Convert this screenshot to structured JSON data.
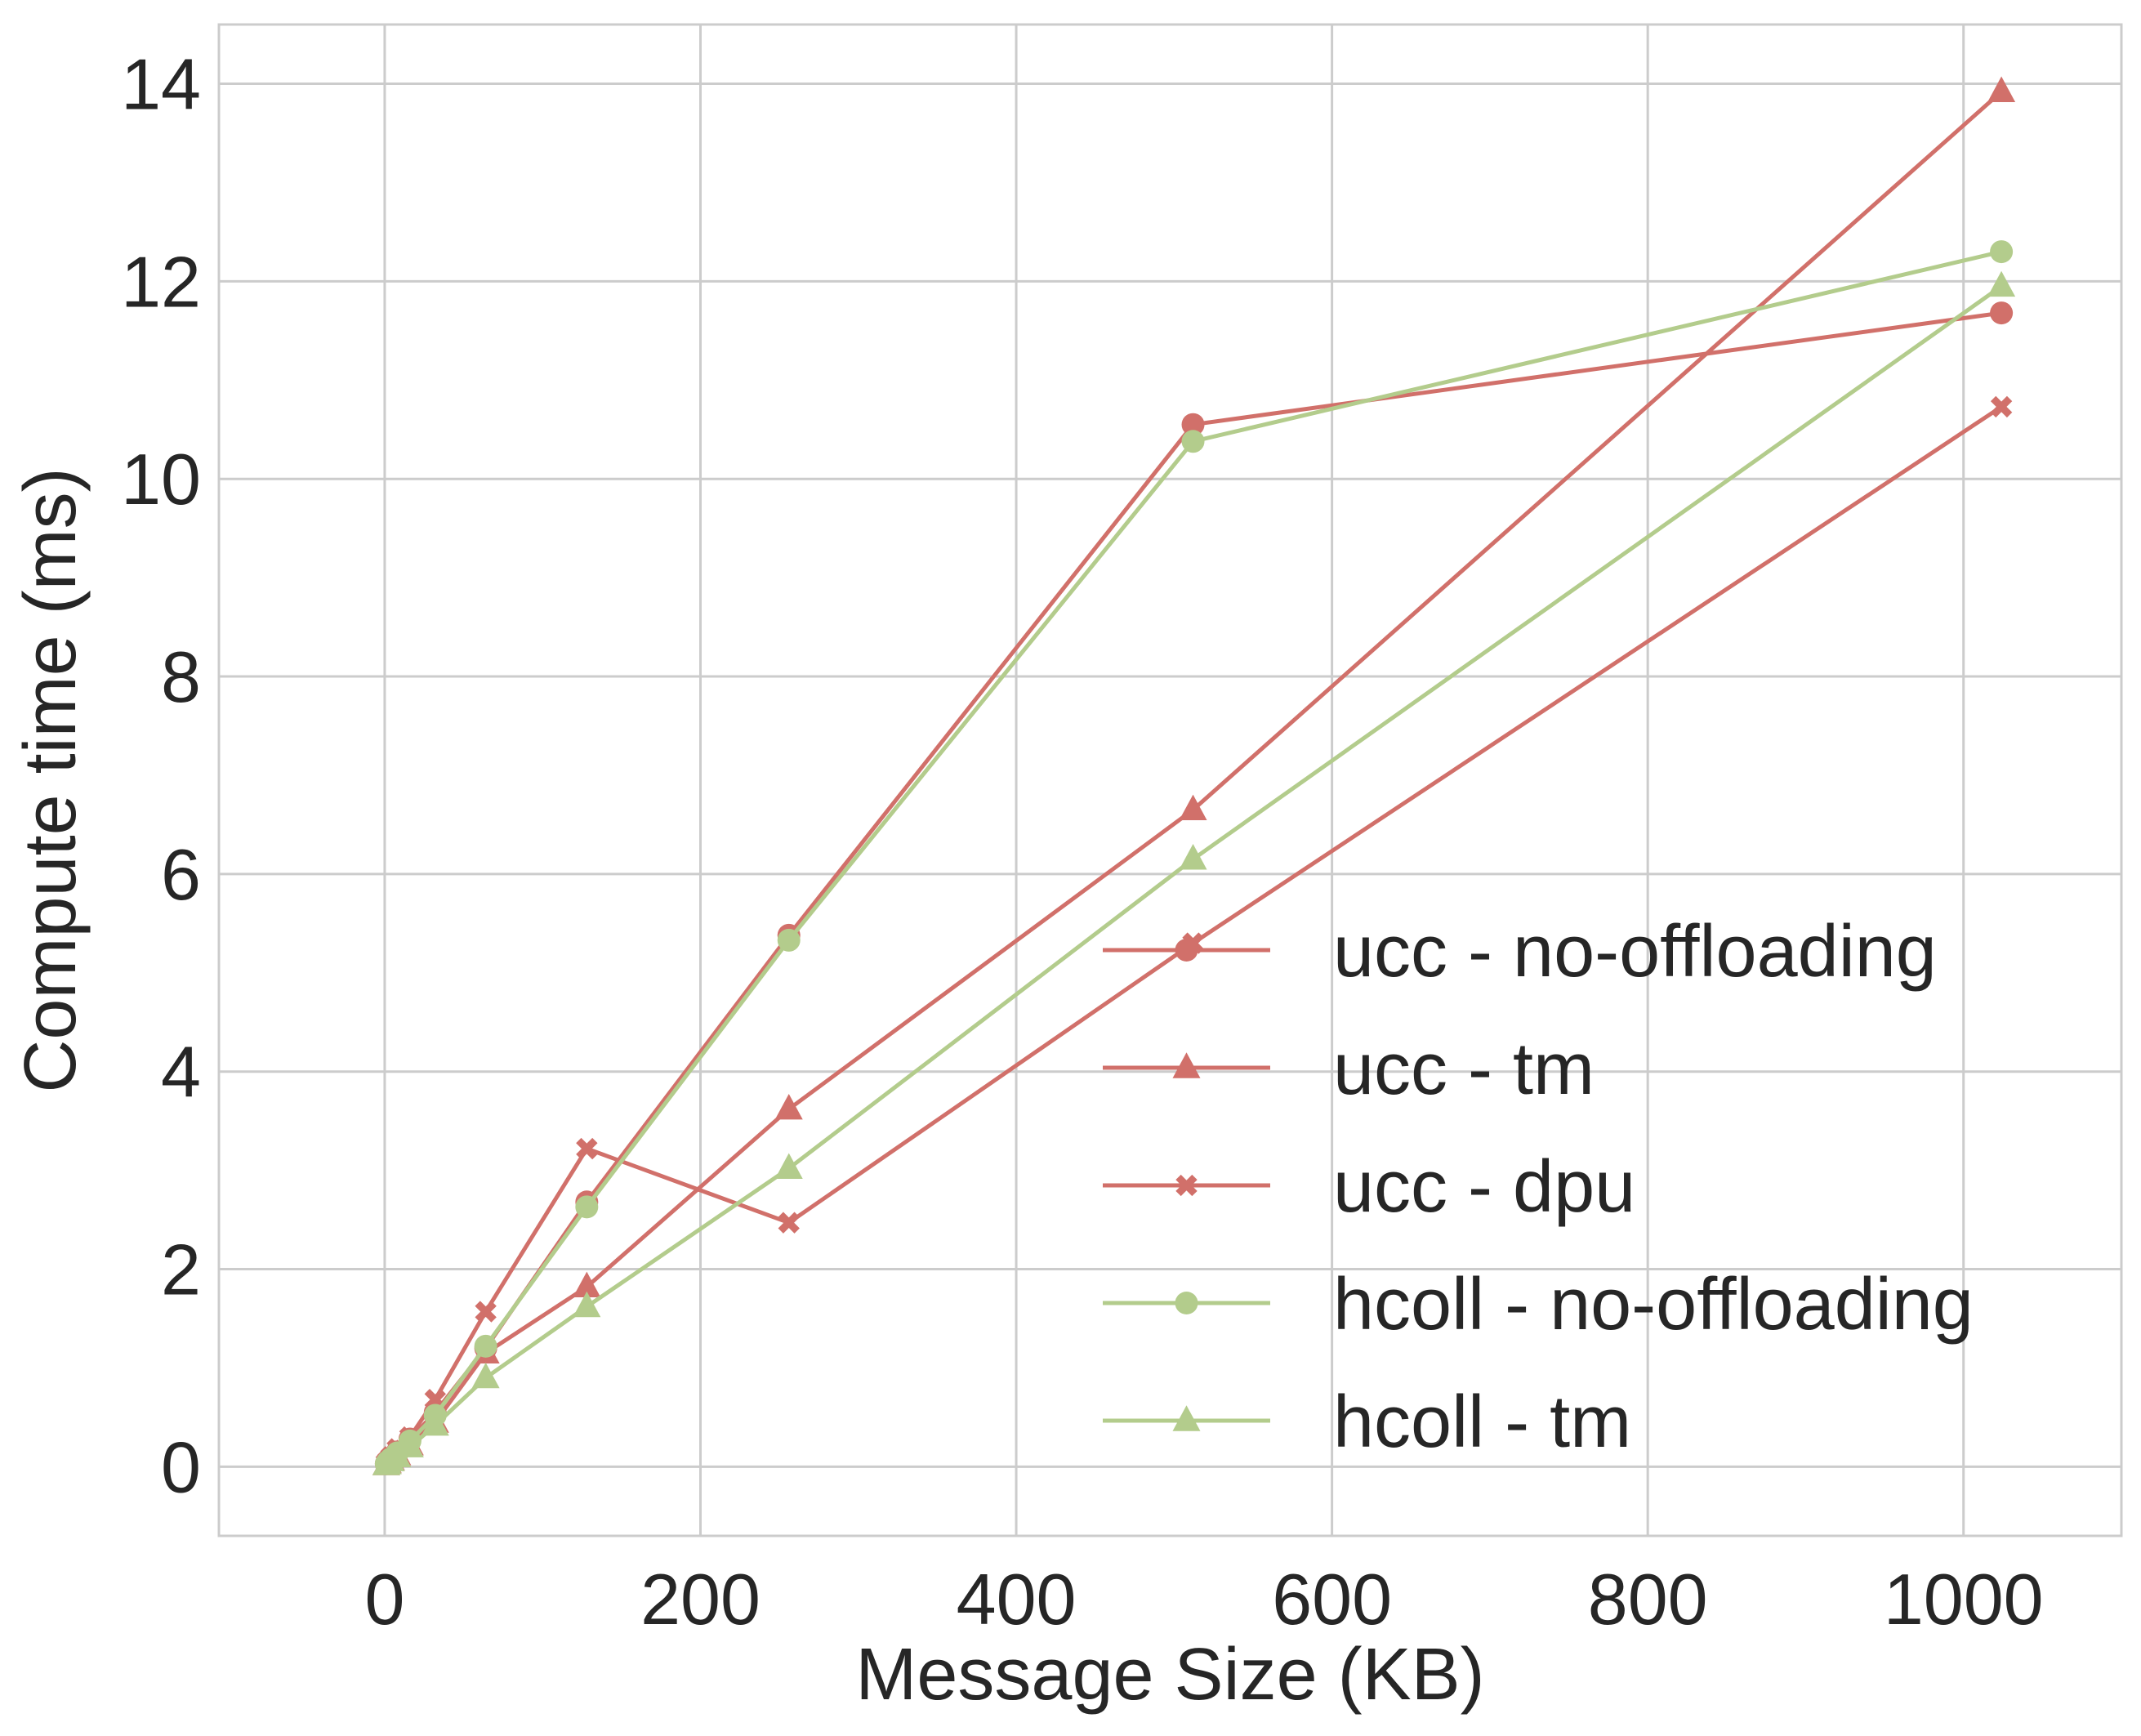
{
  "chart_data": {
    "type": "line",
    "title": "",
    "xlabel": "Message Size (KB)",
    "ylabel": "Compute time (ms)",
    "xlim": [
      -105,
      1100
    ],
    "ylim": [
      -0.7,
      14.6
    ],
    "xticks": [
      0,
      200,
      400,
      600,
      800,
      1000
    ],
    "yticks": [
      0,
      2,
      4,
      6,
      8,
      10,
      12,
      14
    ],
    "grid": true,
    "legend_position": "lower-right",
    "x": [
      1,
      2,
      4,
      8,
      16,
      32,
      64,
      128,
      256,
      512,
      1024
    ],
    "series": [
      {
        "name": "ucc - no-offloading",
        "color": "#d1706a",
        "marker": "circle",
        "values": [
          0.03,
          0.05,
          0.08,
          0.15,
          0.28,
          0.55,
          1.2,
          2.68,
          5.38,
          10.55,
          11.68
        ]
      },
      {
        "name": "ucc - tm",
        "color": "#d1706a",
        "marker": "triangle",
        "values": [
          0.02,
          0.04,
          0.07,
          0.12,
          0.22,
          0.45,
          1.15,
          1.82,
          3.62,
          6.65,
          13.92
        ]
      },
      {
        "name": "ucc - dpu",
        "color": "#d1706a",
        "marker": "x",
        "values": [
          0.04,
          0.06,
          0.1,
          0.18,
          0.3,
          0.68,
          1.57,
          3.22,
          2.47,
          5.3,
          10.73
        ]
      },
      {
        "name": "hcoll - no-offloading",
        "color": "#b3cc8c",
        "marker": "circle",
        "values": [
          0.03,
          0.05,
          0.08,
          0.14,
          0.26,
          0.52,
          1.22,
          2.63,
          5.33,
          10.38,
          12.3
        ]
      },
      {
        "name": "hcoll - tm",
        "color": "#b3cc8c",
        "marker": "triangle",
        "values": [
          0.02,
          0.03,
          0.06,
          0.1,
          0.2,
          0.42,
          0.9,
          1.62,
          3.02,
          6.15,
          11.95
        ]
      }
    ]
  }
}
